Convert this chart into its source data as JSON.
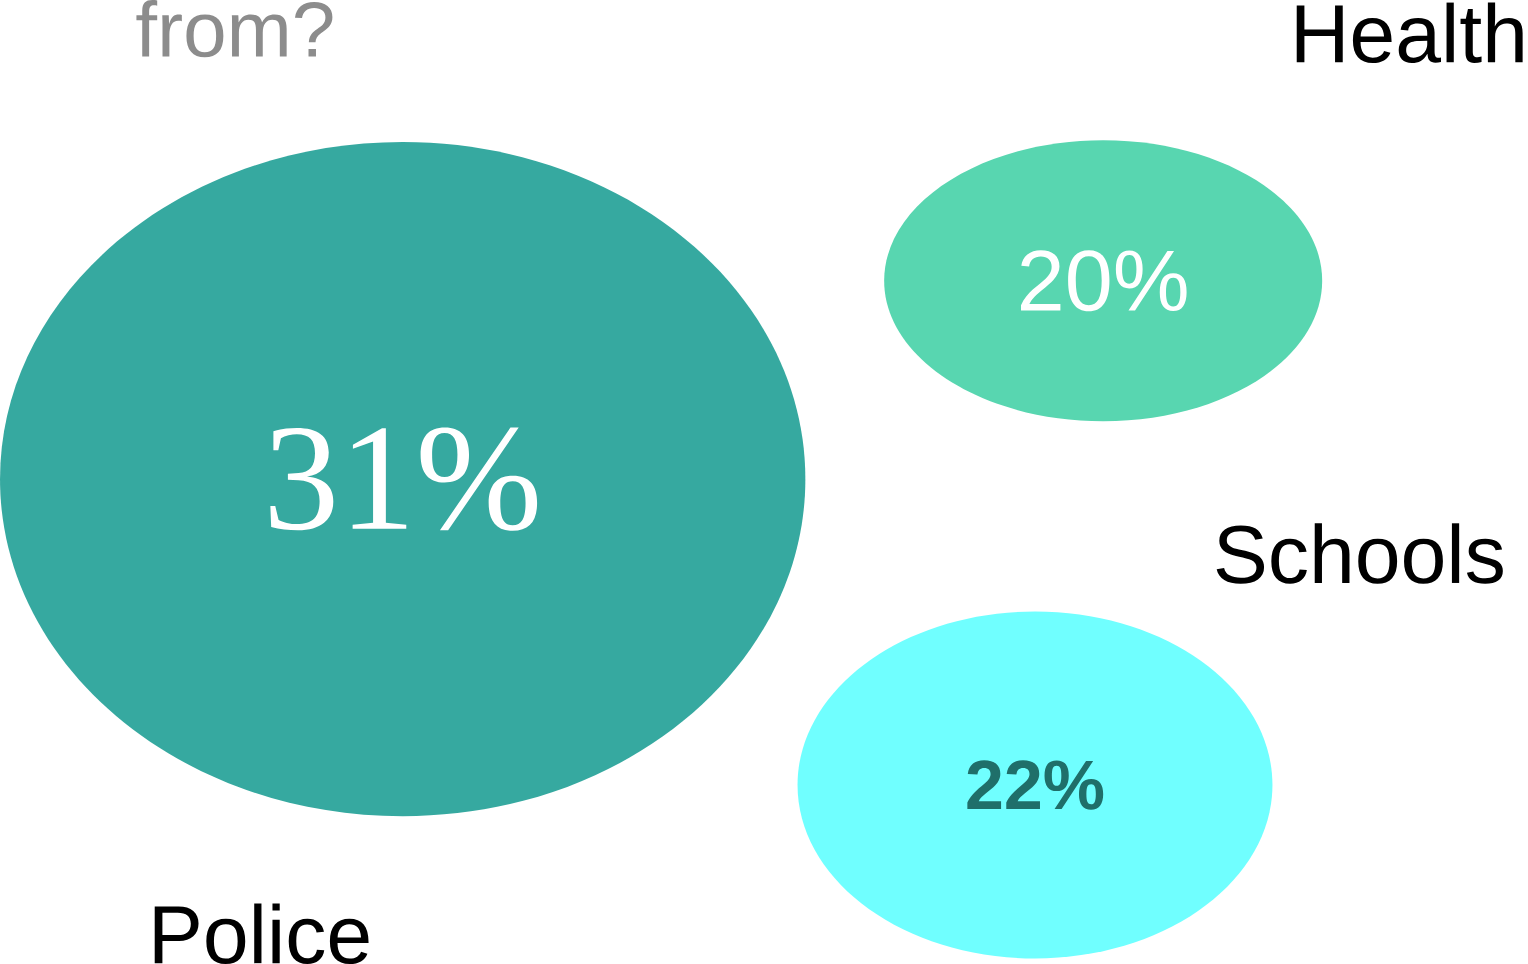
{
  "chart_data": {
    "type": "other",
    "title": "from?",
    "categories": [
      "Police",
      "Health",
      "Schools"
    ],
    "values": [
      31,
      20,
      22
    ],
    "colors": [
      "#36a9a0",
      "#58d6b0",
      "#70ffff"
    ],
    "value_labels": [
      "31%",
      "20%",
      "22%"
    ]
  }
}
